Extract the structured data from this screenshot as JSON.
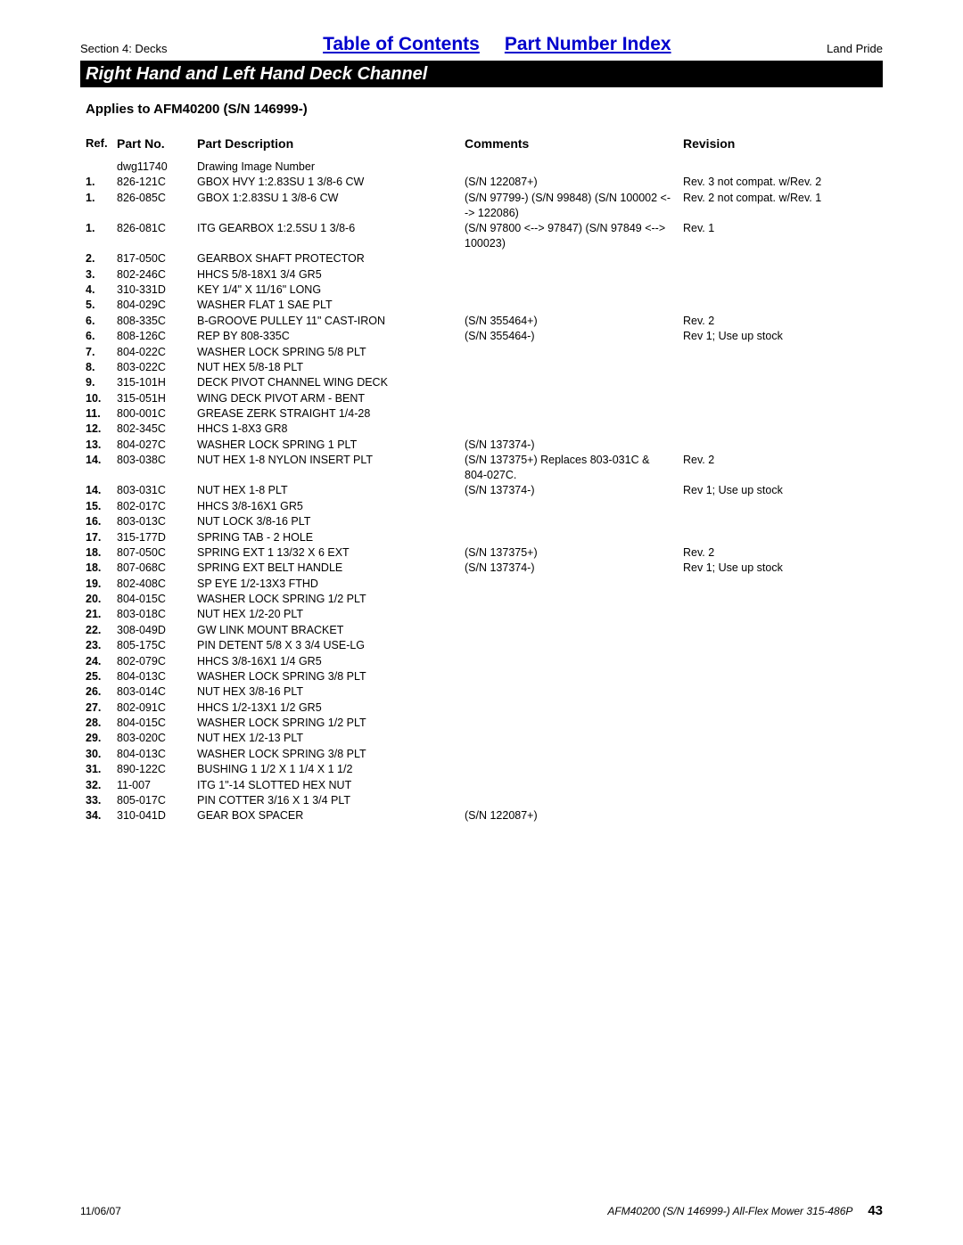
{
  "header": {
    "section_label": "Section 4: Decks",
    "toc_link": "Table of Contents",
    "pni_link": "Part Number Index",
    "brand": "Land Pride"
  },
  "title": "Right Hand and Left Hand Deck Channel",
  "applies_to": "Applies to AFM40200 (S/N 146999-)",
  "columns": {
    "ref": "Ref.",
    "part": "Part No.",
    "desc": "Part Description",
    "comm": "Comments",
    "rev": "Revision"
  },
  "rows": [
    {
      "ref": "",
      "part": "dwg11740",
      "desc": "Drawing Image Number",
      "comm": "",
      "rev": ""
    },
    {
      "ref": "1.",
      "part": "826-121C",
      "desc": "GBOX HVY 1:2.83SU 1 3/8-6 CW",
      "comm": "(S/N 122087+)",
      "rev": "Rev. 3 not compat. w/Rev. 2"
    },
    {
      "ref": "1.",
      "part": "826-085C",
      "desc": "GBOX 1:2.83SU 1 3/8-6 CW",
      "comm": "(S/N 97799-) (S/N 99848) (S/N 100002 <--> 122086)",
      "rev": "Rev. 2 not compat. w/Rev. 1"
    },
    {
      "ref": "1.",
      "part": "826-081C",
      "desc": "ITG GEARBOX 1:2.5SU 1 3/8-6",
      "comm": "(S/N 97800 <--> 97847) (S/N 97849 <--> 100023)",
      "rev": "Rev. 1"
    },
    {
      "ref": "2.",
      "part": "817-050C",
      "desc": "GEARBOX SHAFT PROTECTOR",
      "comm": "",
      "rev": ""
    },
    {
      "ref": "3.",
      "part": "802-246C",
      "desc": "HHCS 5/8-18X1 3/4 GR5",
      "comm": "",
      "rev": ""
    },
    {
      "ref": "4.",
      "part": "310-331D",
      "desc": "KEY 1/4\" X 11/16\" LONG",
      "comm": "",
      "rev": ""
    },
    {
      "ref": "5.",
      "part": "804-029C",
      "desc": "WASHER FLAT 1 SAE PLT",
      "comm": "",
      "rev": ""
    },
    {
      "ref": "6.",
      "part": "808-335C",
      "desc": "B-GROOVE PULLEY 11\" CAST-IRON",
      "comm": "(S/N 355464+)",
      "rev": "Rev. 2"
    },
    {
      "ref": "6.",
      "part": "808-126C",
      "desc": "REP BY 808-335C",
      "comm": "(S/N 355464-)",
      "rev": "Rev 1; Use up stock"
    },
    {
      "ref": "7.",
      "part": "804-022C",
      "desc": "WASHER LOCK SPRING 5/8 PLT",
      "comm": "",
      "rev": ""
    },
    {
      "ref": "8.",
      "part": "803-022C",
      "desc": "NUT HEX 5/8-18 PLT",
      "comm": "",
      "rev": ""
    },
    {
      "ref": "9.",
      "part": "315-101H",
      "desc": "DECK PIVOT CHANNEL WING DECK",
      "comm": "",
      "rev": ""
    },
    {
      "ref": "10.",
      "part": "315-051H",
      "desc": "WING DECK PIVOT ARM - BENT",
      "comm": "",
      "rev": ""
    },
    {
      "ref": "11.",
      "part": "800-001C",
      "desc": "GREASE ZERK STRAIGHT 1/4-28",
      "comm": "",
      "rev": ""
    },
    {
      "ref": "12.",
      "part": "802-345C",
      "desc": "HHCS 1-8X3 GR8",
      "comm": "",
      "rev": ""
    },
    {
      "ref": "13.",
      "part": "804-027C",
      "desc": "WASHER LOCK SPRING 1 PLT",
      "comm": "(S/N 137374-)",
      "rev": ""
    },
    {
      "ref": "14.",
      "part": "803-038C",
      "desc": "NUT HEX 1-8 NYLON INSERT PLT",
      "comm": "(S/N 137375+) Replaces 803-031C & 804-027C.",
      "rev": "Rev. 2"
    },
    {
      "ref": "14.",
      "part": "803-031C",
      "desc": "NUT HEX 1-8 PLT",
      "comm": "(S/N 137374-)",
      "rev": "Rev 1; Use up stock"
    },
    {
      "ref": "15.",
      "part": "802-017C",
      "desc": "HHCS 3/8-16X1 GR5",
      "comm": "",
      "rev": ""
    },
    {
      "ref": "16.",
      "part": "803-013C",
      "desc": "NUT LOCK 3/8-16 PLT",
      "comm": "",
      "rev": ""
    },
    {
      "ref": "17.",
      "part": "315-177D",
      "desc": "SPRING TAB - 2 HOLE",
      "comm": "",
      "rev": ""
    },
    {
      "ref": "18.",
      "part": "807-050C",
      "desc": "SPRING EXT 1 13/32 X 6 EXT",
      "comm": "(S/N 137375+)",
      "rev": "Rev. 2"
    },
    {
      "ref": "18.",
      "part": "807-068C",
      "desc": "SPRING EXT BELT HANDLE",
      "comm": "(S/N 137374-)",
      "rev": "Rev 1; Use up stock"
    },
    {
      "ref": "19.",
      "part": "802-408C",
      "desc": "SP EYE 1/2-13X3 FTHD",
      "comm": "",
      "rev": ""
    },
    {
      "ref": "20.",
      "part": "804-015C",
      "desc": "WASHER LOCK SPRING 1/2 PLT",
      "comm": "",
      "rev": ""
    },
    {
      "ref": "21.",
      "part": "803-018C",
      "desc": "NUT HEX 1/2-20 PLT",
      "comm": "",
      "rev": ""
    },
    {
      "ref": "22.",
      "part": "308-049D",
      "desc": "GW LINK MOUNT BRACKET",
      "comm": "",
      "rev": ""
    },
    {
      "ref": "23.",
      "part": "805-175C",
      "desc": "PIN DETENT 5/8 X 3 3/4 USE-LG",
      "comm": "",
      "rev": ""
    },
    {
      "ref": "24.",
      "part": "802-079C",
      "desc": "HHCS 3/8-16X1 1/4 GR5",
      "comm": "",
      "rev": ""
    },
    {
      "ref": "25.",
      "part": "804-013C",
      "desc": "WASHER LOCK SPRING 3/8 PLT",
      "comm": "",
      "rev": ""
    },
    {
      "ref": "26.",
      "part": "803-014C",
      "desc": "NUT HEX 3/8-16 PLT",
      "comm": "",
      "rev": ""
    },
    {
      "ref": "27.",
      "part": "802-091C",
      "desc": "HHCS 1/2-13X1 1/2 GR5",
      "comm": "",
      "rev": ""
    },
    {
      "ref": "28.",
      "part": "804-015C",
      "desc": "WASHER LOCK SPRING 1/2 PLT",
      "comm": "",
      "rev": ""
    },
    {
      "ref": "29.",
      "part": "803-020C",
      "desc": "NUT HEX 1/2-13 PLT",
      "comm": "",
      "rev": ""
    },
    {
      "ref": "30.",
      "part": "804-013C",
      "desc": "WASHER LOCK SPRING 3/8 PLT",
      "comm": "",
      "rev": ""
    },
    {
      "ref": "31.",
      "part": "890-122C",
      "desc": "BUSHING 1 1/2 X 1 1/4 X 1 1/2",
      "comm": "",
      "rev": ""
    },
    {
      "ref": "32.",
      "part": "11-007",
      "desc": "ITG 1\"-14 SLOTTED HEX NUT",
      "comm": "",
      "rev": ""
    },
    {
      "ref": "33.",
      "part": "805-017C",
      "desc": "PIN COTTER 3/16 X 1 3/4 PLT",
      "comm": "",
      "rev": ""
    },
    {
      "ref": "34.",
      "part": "310-041D",
      "desc": "GEAR BOX SPACER",
      "comm": "(S/N 122087+)",
      "rev": ""
    }
  ],
  "footer": {
    "date": "11/06/07",
    "model": "AFM40200 (S/N 146999-) All-Flex Mower 315-486P",
    "page": "43"
  }
}
